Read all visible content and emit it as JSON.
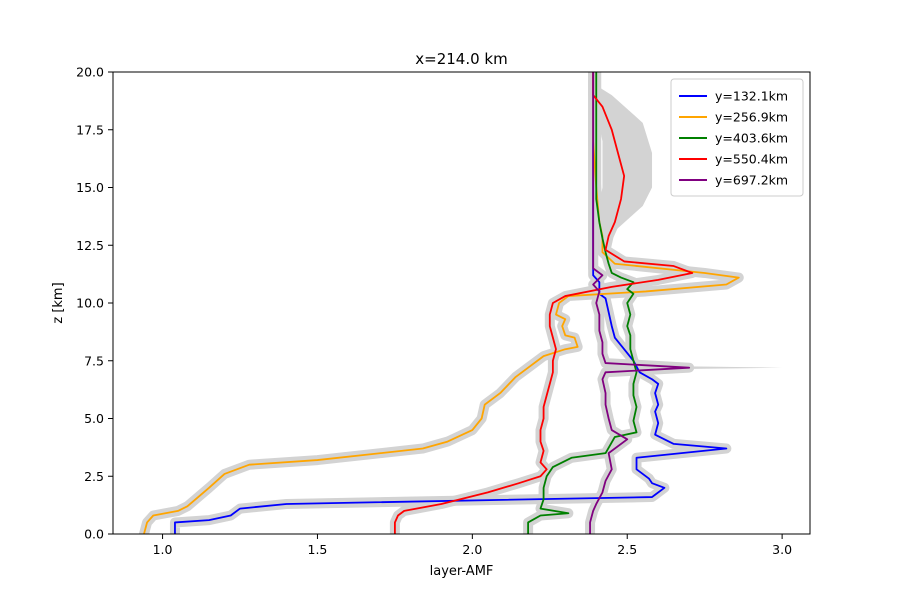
{
  "chart_data": {
    "type": "line",
    "title": "x=214.0 km",
    "xlabel": "layer-AMF",
    "ylabel": "z [km]",
    "xlim": [
      0.84,
      3.09
    ],
    "ylim": [
      0,
      20
    ],
    "xticks": [
      1.0,
      1.5,
      2.0,
      2.5,
      3.0
    ],
    "yticks": [
      0.0,
      2.5,
      5.0,
      7.5,
      10.0,
      12.5,
      15.0,
      17.5,
      20.0
    ],
    "grid": false,
    "legend_position": "top-right",
    "band_color": "#d3d3d3",
    "series": [
      {
        "name": "y=132.1km",
        "color": "#0000ff",
        "points": [
          [
            1.04,
            0
          ],
          [
            1.04,
            0.5
          ],
          [
            1.15,
            0.6
          ],
          [
            1.22,
            0.8
          ],
          [
            1.25,
            1.1
          ],
          [
            1.4,
            1.3
          ],
          [
            2.58,
            1.6
          ],
          [
            2.59,
            1.7
          ],
          [
            2.62,
            2.0
          ],
          [
            2.58,
            2.2
          ],
          [
            2.57,
            2.4
          ],
          [
            2.53,
            2.8
          ],
          [
            2.53,
            3.3
          ],
          [
            2.82,
            3.7
          ],
          [
            2.65,
            3.9
          ],
          [
            2.59,
            4.3
          ],
          [
            2.6,
            4.8
          ],
          [
            2.59,
            5.3
          ],
          [
            2.6,
            5.6
          ],
          [
            2.59,
            6.1
          ],
          [
            2.6,
            6.5
          ],
          [
            2.58,
            6.7
          ],
          [
            2.54,
            7.0
          ],
          [
            2.52,
            7.5
          ],
          [
            2.49,
            8.0
          ],
          [
            2.46,
            8.5
          ],
          [
            2.45,
            9.0
          ],
          [
            2.44,
            9.6
          ],
          [
            2.43,
            10.2
          ],
          [
            2.41,
            10.4
          ],
          [
            2.41,
            10.9
          ],
          [
            2.39,
            11.2
          ],
          [
            2.39,
            12.0
          ],
          [
            2.39,
            13.5
          ],
          [
            2.39,
            15.0
          ],
          [
            2.39,
            16.5
          ],
          [
            2.39,
            18.0
          ],
          [
            2.39,
            19.5
          ],
          [
            2.39,
            20
          ]
        ]
      },
      {
        "name": "y=256.9km",
        "color": "#ffa500",
        "points": [
          [
            0.94,
            0
          ],
          [
            0.95,
            0.5
          ],
          [
            0.97,
            0.8
          ],
          [
            1.05,
            1.0
          ],
          [
            1.08,
            1.2
          ],
          [
            1.15,
            2.0
          ],
          [
            1.2,
            2.6
          ],
          [
            1.28,
            3.0
          ],
          [
            1.5,
            3.2
          ],
          [
            1.84,
            3.7
          ],
          [
            1.92,
            4.0
          ],
          [
            2.0,
            4.5
          ],
          [
            2.03,
            5.0
          ],
          [
            2.04,
            5.6
          ],
          [
            2.09,
            6.1
          ],
          [
            2.14,
            6.8
          ],
          [
            2.18,
            7.2
          ],
          [
            2.23,
            7.7
          ],
          [
            2.3,
            8.0
          ],
          [
            2.34,
            8.1
          ],
          [
            2.33,
            8.5
          ],
          [
            2.3,
            8.6
          ],
          [
            2.29,
            9.0
          ],
          [
            2.3,
            9.3
          ],
          [
            2.27,
            9.5
          ],
          [
            2.28,
            10.0
          ],
          [
            2.31,
            10.3
          ],
          [
            2.56,
            10.5
          ],
          [
            2.82,
            10.8
          ],
          [
            2.86,
            11.1
          ],
          [
            2.75,
            11.3
          ],
          [
            2.46,
            11.7
          ],
          [
            2.42,
            12.2
          ],
          [
            2.42,
            12.9
          ],
          [
            2.41,
            13.5
          ],
          [
            2.4,
            15.0
          ],
          [
            2.39,
            17.0
          ],
          [
            2.39,
            19.0
          ],
          [
            2.39,
            20
          ]
        ]
      },
      {
        "name": "y=403.6km",
        "color": "#008000",
        "points": [
          [
            2.18,
            0
          ],
          [
            2.18,
            0.5
          ],
          [
            2.22,
            0.8
          ],
          [
            2.31,
            0.9
          ],
          [
            2.22,
            1.1
          ],
          [
            2.23,
            1.5
          ],
          [
            2.23,
            2.0
          ],
          [
            2.24,
            2.5
          ],
          [
            2.26,
            2.9
          ],
          [
            2.32,
            3.3
          ],
          [
            2.43,
            3.5
          ],
          [
            2.46,
            4.2
          ],
          [
            2.53,
            4.4
          ],
          [
            2.52,
            4.9
          ],
          [
            2.53,
            5.5
          ],
          [
            2.52,
            6.0
          ],
          [
            2.52,
            6.5
          ],
          [
            2.53,
            7.0
          ],
          [
            2.52,
            7.5
          ],
          [
            2.51,
            8.0
          ],
          [
            2.51,
            8.6
          ],
          [
            2.5,
            9.0
          ],
          [
            2.51,
            9.5
          ],
          [
            2.5,
            10.0
          ],
          [
            2.52,
            10.4
          ],
          [
            2.5,
            10.6
          ],
          [
            2.52,
            10.9
          ],
          [
            2.48,
            11.1
          ],
          [
            2.45,
            11.3
          ],
          [
            2.44,
            11.7
          ],
          [
            2.43,
            12.2
          ],
          [
            2.42,
            12.8
          ],
          [
            2.41,
            13.5
          ],
          [
            2.4,
            14.5
          ],
          [
            2.4,
            16.0
          ],
          [
            2.4,
            17.5
          ],
          [
            2.4,
            19.0
          ],
          [
            2.4,
            20
          ]
        ]
      },
      {
        "name": "y=550.4km",
        "color": "#ff0000",
        "points": [
          [
            1.75,
            0
          ],
          [
            1.75,
            0.5
          ],
          [
            1.76,
            0.8
          ],
          [
            1.78,
            1.0
          ],
          [
            1.9,
            1.3
          ],
          [
            2.05,
            1.8
          ],
          [
            2.15,
            2.2
          ],
          [
            2.22,
            2.5
          ],
          [
            2.24,
            2.8
          ],
          [
            2.22,
            3.1
          ],
          [
            2.23,
            3.6
          ],
          [
            2.22,
            4.0
          ],
          [
            2.22,
            4.5
          ],
          [
            2.23,
            5.0
          ],
          [
            2.23,
            5.5
          ],
          [
            2.24,
            6.0
          ],
          [
            2.25,
            6.5
          ],
          [
            2.26,
            7.0
          ],
          [
            2.26,
            7.5
          ],
          [
            2.27,
            8.0
          ],
          [
            2.26,
            8.5
          ],
          [
            2.25,
            9.0
          ],
          [
            2.25,
            9.5
          ],
          [
            2.26,
            10.0
          ],
          [
            2.3,
            10.3
          ],
          [
            2.45,
            10.7
          ],
          [
            2.6,
            11.0
          ],
          [
            2.71,
            11.3
          ],
          [
            2.65,
            11.6
          ],
          [
            2.49,
            11.8
          ],
          [
            2.43,
            12.3
          ],
          [
            2.44,
            12.9
          ],
          [
            2.46,
            13.5
          ],
          [
            2.48,
            14.5
          ],
          [
            2.49,
            15.5
          ],
          [
            2.47,
            16.5
          ],
          [
            2.45,
            17.5
          ],
          [
            2.42,
            18.5
          ],
          [
            2.39,
            19.0
          ],
          [
            2.39,
            20
          ]
        ]
      },
      {
        "name": "y=697.2km",
        "color": "#800080",
        "points": [
          [
            2.38,
            0
          ],
          [
            2.38,
            0.5
          ],
          [
            2.39,
            1.0
          ],
          [
            2.4,
            1.3
          ],
          [
            2.42,
            1.8
          ],
          [
            2.43,
            2.3
          ],
          [
            2.45,
            2.8
          ],
          [
            2.44,
            3.5
          ],
          [
            2.5,
            4.1
          ],
          [
            2.45,
            4.5
          ],
          [
            2.44,
            5.0
          ],
          [
            2.43,
            5.6
          ],
          [
            2.43,
            6.1
          ],
          [
            2.42,
            6.7
          ],
          [
            2.43,
            7.0
          ],
          [
            2.7,
            7.2
          ],
          [
            2.43,
            7.4
          ],
          [
            2.42,
            7.8
          ],
          [
            2.42,
            8.3
          ],
          [
            2.41,
            8.8
          ],
          [
            2.41,
            9.5
          ],
          [
            2.4,
            10.0
          ],
          [
            2.41,
            10.5
          ],
          [
            2.39,
            10.8
          ],
          [
            2.42,
            11.2
          ],
          [
            2.39,
            11.5
          ],
          [
            2.39,
            12.0
          ],
          [
            2.39,
            13.5
          ],
          [
            2.39,
            15.0
          ],
          [
            2.39,
            17.0
          ],
          [
            2.39,
            19.0
          ],
          [
            2.39,
            20
          ]
        ]
      }
    ],
    "uncertainty_band": {
      "description_visible": false,
      "extra_upper": [
        [
          15.0,
          2.58
        ],
        [
          14.2,
          2.55
        ],
        [
          16.5,
          2.58
        ],
        [
          17.8,
          2.55
        ],
        [
          19.0,
          2.45
        ]
      ],
      "spike": [
        [
          7.2,
          3.0
        ]
      ]
    }
  }
}
